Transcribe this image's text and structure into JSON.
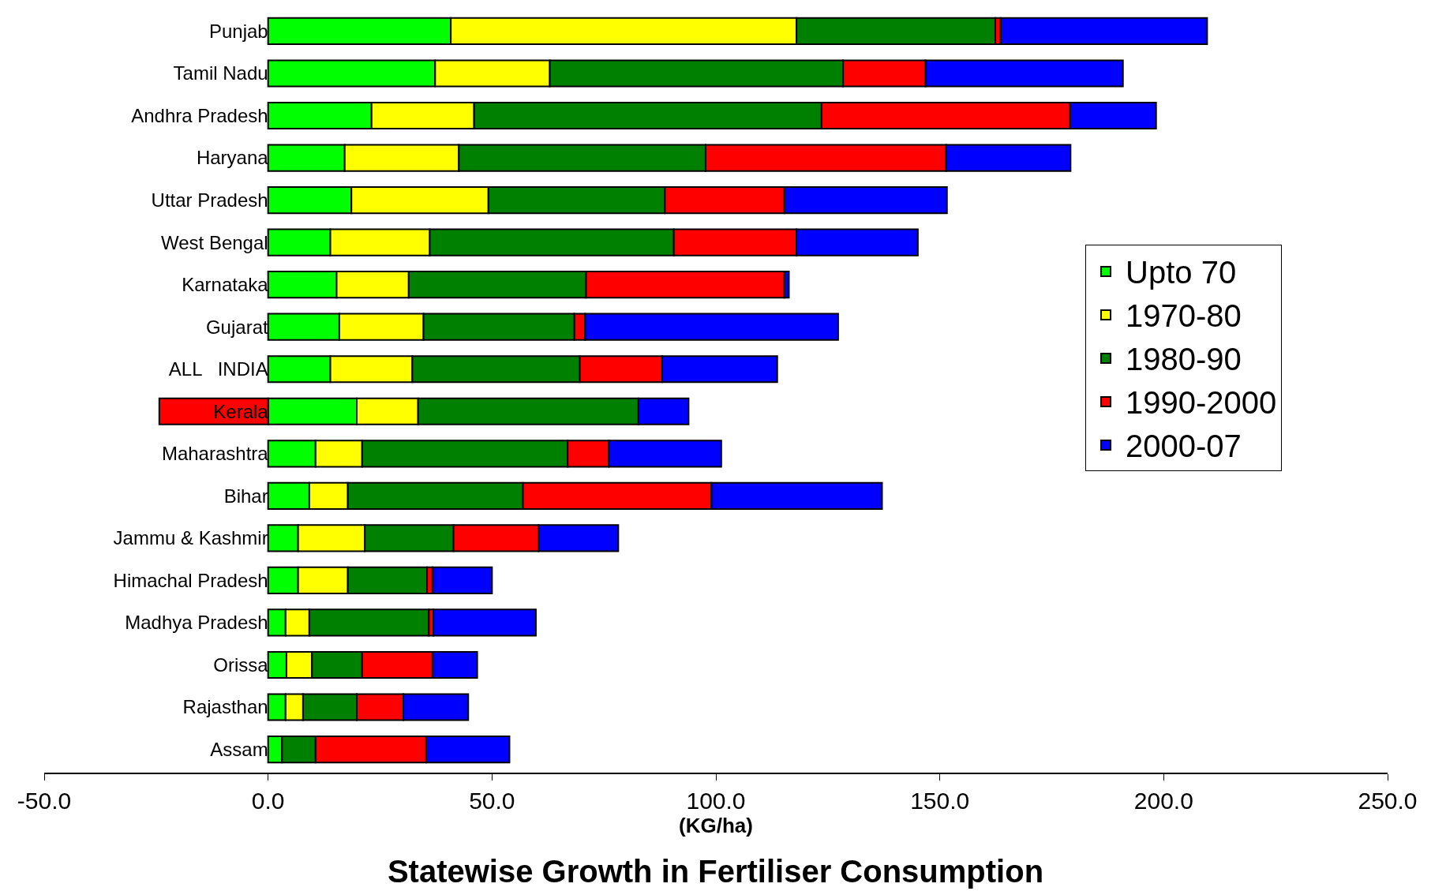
{
  "chart_data": {
    "type": "bar",
    "orientation": "horizontal",
    "stacked": true,
    "title": "Statewise Growth in Fertiliser Consumption",
    "xlabel": "(KG/ha)",
    "categories": [
      "Punjab",
      "Tamil Nadu",
      "Andhra Pradesh",
      "Haryana",
      "Uttar Pradesh",
      "West Bengal",
      "Karnataka",
      "Gujarat",
      "ALL   INDIA",
      "Kerala",
      "Maharashtra",
      "Bihar",
      "Jammu & Kashmir",
      "Himachal Pradesh",
      "Madhya Pradesh",
      "Orissa",
      "Rajasthan",
      "Assam"
    ],
    "series": [
      {
        "name": "Upto 70",
        "color": "#00ff00",
        "values": [
          40.8,
          37.3,
          23.1,
          17.1,
          18.6,
          13.9,
          15.3,
          15.9,
          13.9,
          19.8,
          10.6,
          9.2,
          6.7,
          6.7,
          3.9,
          4.1,
          3.9,
          3.1
        ]
      },
      {
        "name": "1970-80",
        "color": "#ffff00",
        "values": [
          77.2,
          25.6,
          22.9,
          25.5,
          30.6,
          22.2,
          16.1,
          18.8,
          18.3,
          13.7,
          10.4,
          8.6,
          14.9,
          11.1,
          5.3,
          5.7,
          3.9,
          0
        ]
      },
      {
        "name": "1980-90",
        "color": "#008000",
        "values": [
          44.4,
          65.5,
          77.6,
          55.1,
          39.4,
          54.5,
          39.6,
          33.7,
          37.4,
          49.2,
          45.9,
          39.1,
          19.8,
          17.7,
          26.7,
          11.2,
          12.0,
          7.5
        ]
      },
      {
        "name": "1990-2000",
        "color": "#ff0000",
        "values": [
          1.2,
          18.4,
          55.5,
          53.7,
          26.7,
          27.4,
          44.3,
          2.4,
          18.4,
          -24.3,
          9.2,
          42.1,
          19.0,
          1.2,
          1.0,
          15.7,
          10.4,
          24.7
        ]
      },
      {
        "name": "2000-07",
        "color": "#0000ff",
        "values": [
          46.1,
          44.1,
          19.2,
          27.8,
          36.3,
          27.1,
          1.0,
          56.5,
          25.7,
          11.2,
          25.1,
          38.1,
          17.8,
          13.3,
          22.9,
          10.0,
          14.5,
          18.6
        ]
      }
    ],
    "xlim": [
      -50,
      250
    ],
    "xticks": [
      {
        "value": -50,
        "label": "-50.0"
      },
      {
        "value": 0,
        "label": "0.0"
      },
      {
        "value": 50,
        "label": "50.0"
      },
      {
        "value": 100,
        "label": "100.0"
      },
      {
        "value": 150,
        "label": "150.0"
      },
      {
        "value": 200,
        "label": "200.0"
      },
      {
        "value": 250,
        "label": "250.0"
      }
    ],
    "grid": false,
    "legend": "right"
  }
}
